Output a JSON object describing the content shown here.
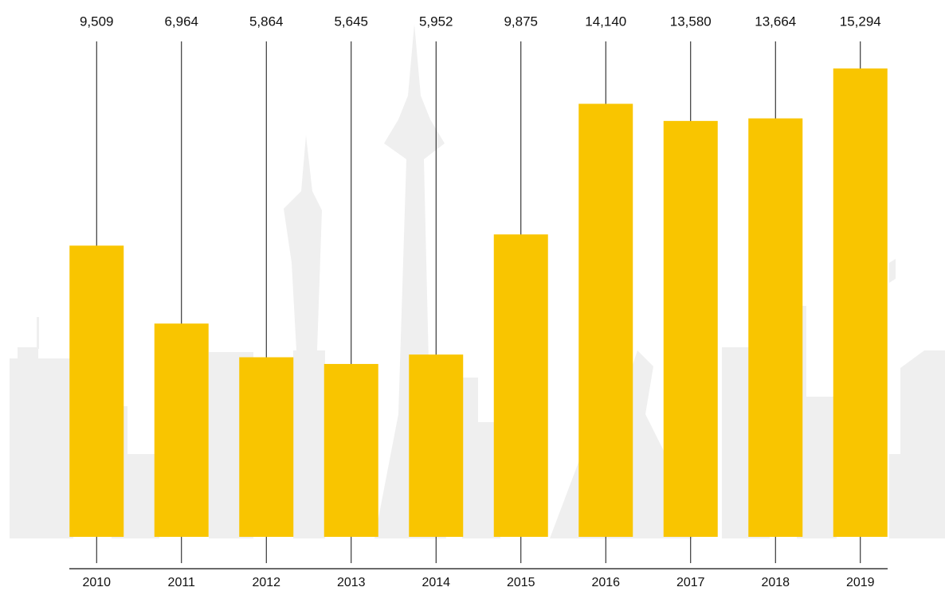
{
  "chart_data": {
    "type": "bar",
    "categories": [
      "2010",
      "2011",
      "2012",
      "2013",
      "2014",
      "2015",
      "2016",
      "2017",
      "2018",
      "2019"
    ],
    "values": [
      9509,
      6964,
      5864,
      5645,
      5952,
      9875,
      14140,
      13580,
      13664,
      15294
    ],
    "value_labels": [
      "9,509",
      "6,964",
      "5,864",
      "5,645",
      "5,952",
      "9,875",
      "14,140",
      "13,580",
      "13,664",
      "15,294"
    ],
    "color": "#f9c500",
    "ylim": [
      0,
      16000
    ]
  }
}
